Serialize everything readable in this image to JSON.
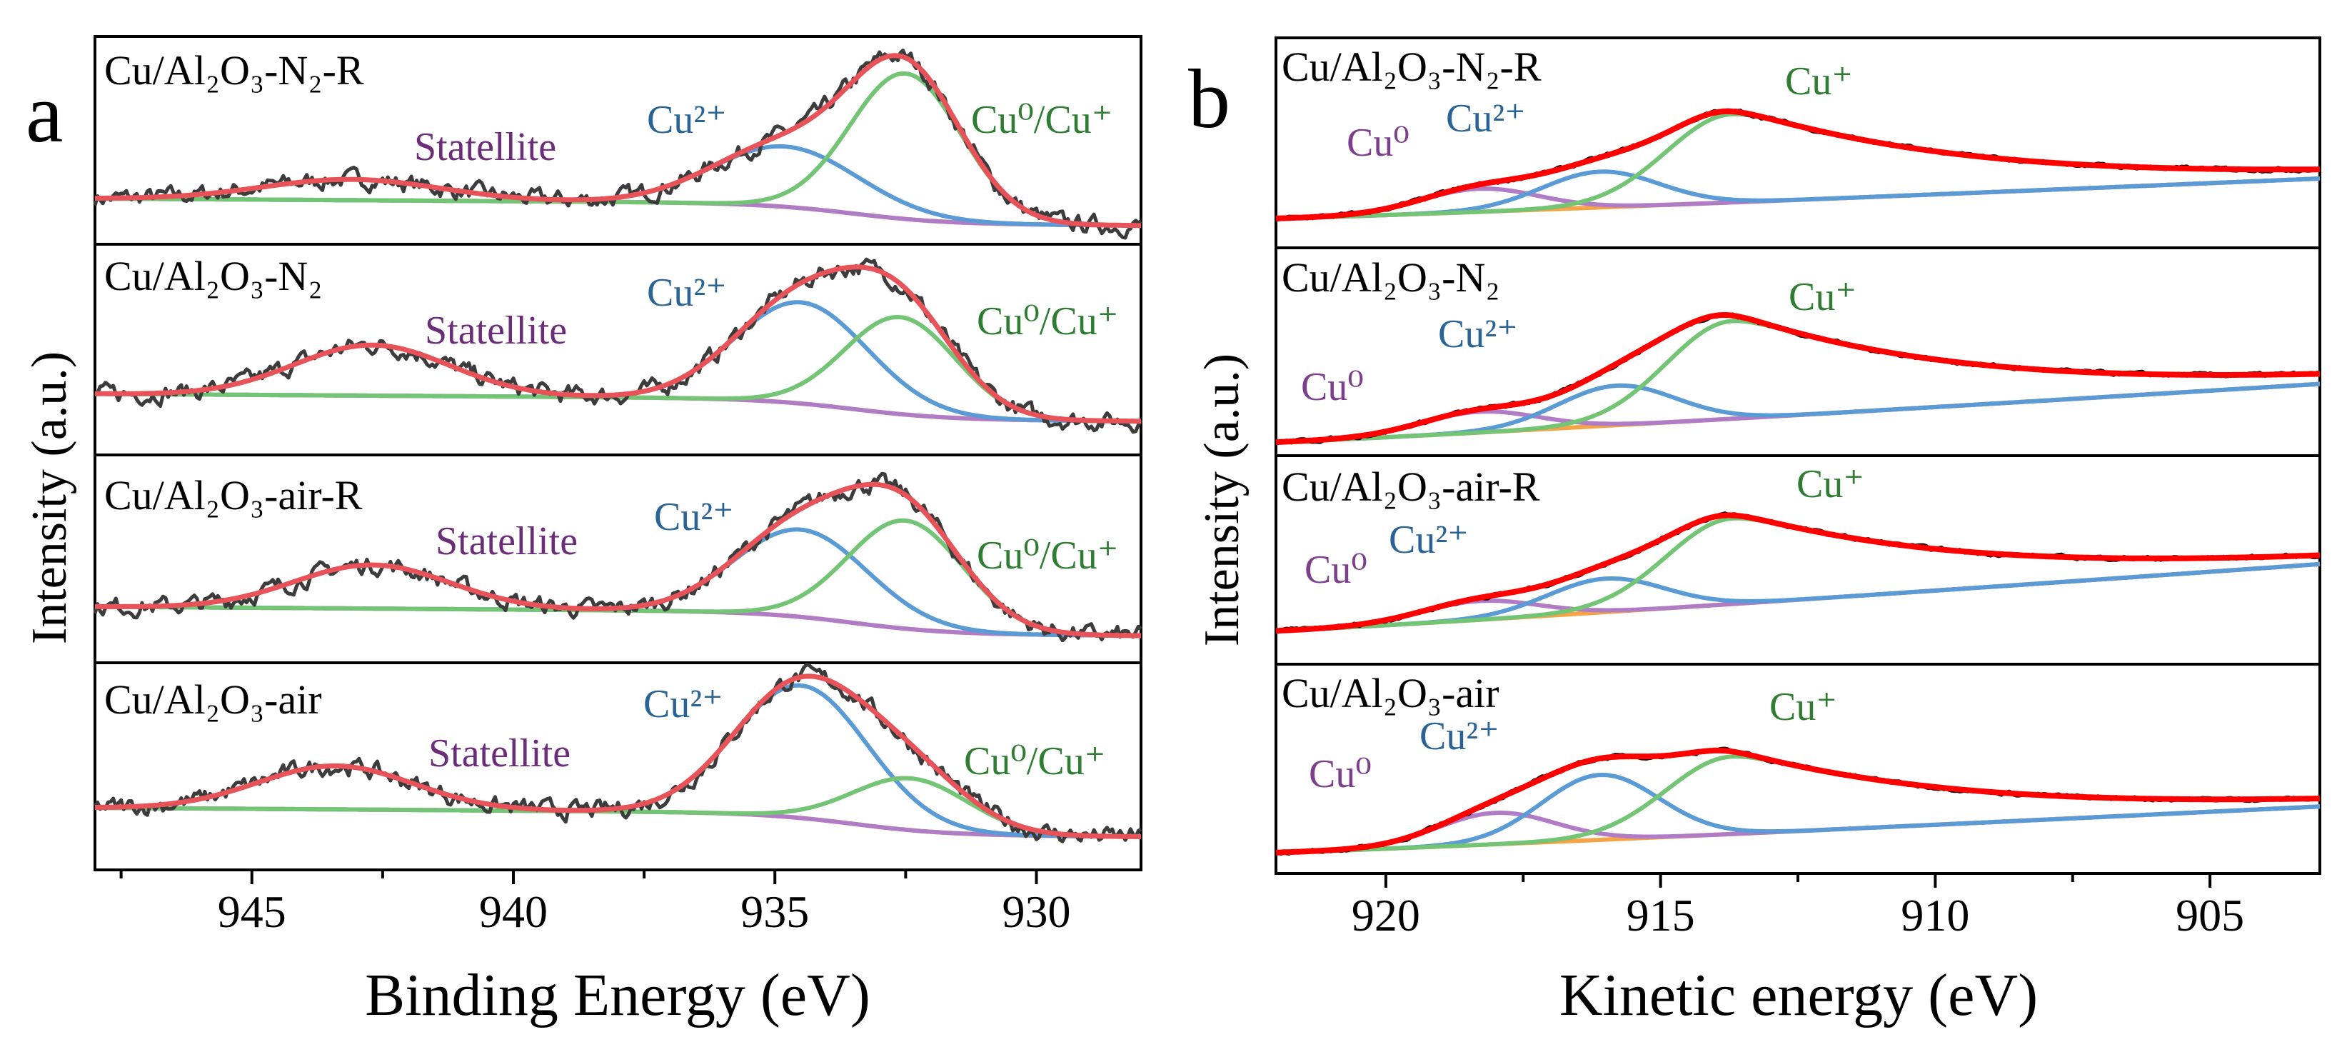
{
  "panel_letters": [
    "a",
    "b"
  ],
  "chart_data": [
    {
      "type": "line",
      "panel_letter": "a",
      "xlabel": "Binding Energy (eV)",
      "ylabel": "Intensity (a.u.)",
      "xlim": [
        948,
        928
      ],
      "x_reversed": true,
      "x_ticks": [
        945,
        940,
        935,
        930
      ],
      "x_tick_labels": [
        "945",
        "940",
        "935",
        "930"
      ],
      "x_minor_tick_step": 2.5,
      "y_ticks": false,
      "grid": false,
      "colors": {
        "raw": "#3c3c3c",
        "fit": "#e8535a",
        "background": "#f5a347"
      },
      "panels": [
        {
          "sample": "Cu/Al₂O₃-N₂-R",
          "background": {
            "start": 0.22,
            "end": 0.09
          },
          "components": [
            {
              "label": "Statellite",
              "center": 943.1,
              "height": 0.1,
              "fwhm": 4.0,
              "color": "#b07cc6"
            },
            {
              "label": "Cu²⁺",
              "center": 934.8,
              "height": 0.29,
              "fwhm": 3.3,
              "color": "#5b9bd5"
            },
            {
              "label": "Cu⁰/Cu⁺",
              "center": 932.5,
              "height": 0.7,
              "fwhm": 2.5,
              "color": "#74c476"
            }
          ]
        },
        {
          "sample": "Cu/Al₂O₃-N₂",
          "background": {
            "start": 0.29,
            "end": 0.16
          },
          "components": [
            {
              "label": "Statellite",
              "center": 942.7,
              "height": 0.24,
              "fwhm": 3.5,
              "color": "#b07cc6"
            },
            {
              "label": "Cu²⁺",
              "center": 934.5,
              "height": 0.48,
              "fwhm": 3.0,
              "color": "#5b9bd5"
            },
            {
              "label": "Cu⁰/Cu⁺",
              "center": 932.6,
              "height": 0.46,
              "fwhm": 2.5,
              "color": "#74c476"
            }
          ]
        },
        {
          "sample": "Cu/Al₂O₃-air-R",
          "background": {
            "start": 0.27,
            "end": 0.13
          },
          "components": [
            {
              "label": "Statellite",
              "center": 942.7,
              "height": 0.21,
              "fwhm": 3.5,
              "color": "#b07cc6"
            },
            {
              "label": "Cu²⁺",
              "center": 934.5,
              "height": 0.42,
              "fwhm": 3.0,
              "color": "#5b9bd5"
            },
            {
              "label": "Cu⁰/Cu⁺",
              "center": 932.5,
              "height": 0.52,
              "fwhm": 2.6,
              "color": "#74c476"
            }
          ]
        },
        {
          "sample": "Cu/Al₂O₃-air",
          "background": {
            "start": 0.3,
            "end": 0.16
          },
          "components": [
            {
              "label": "Statellite",
              "center": 943.4,
              "height": 0.21,
              "fwhm": 3.5,
              "color": "#b07cc6"
            },
            {
              "label": "Cu²⁺",
              "center": 934.5,
              "height": 0.64,
              "fwhm": 3.0,
              "color": "#5b9bd5"
            },
            {
              "label": "Cu⁰/Cu⁺",
              "center": 932.4,
              "height": 0.25,
              "fwhm": 2.6,
              "color": "#74c476"
            }
          ]
        }
      ]
    },
    {
      "type": "line",
      "panel_letter": "b",
      "xlabel": "Kinetic energy (eV)",
      "ylabel": "Intensity (a.u.)",
      "xlim": [
        922,
        903
      ],
      "x_reversed": true,
      "x_ticks": [
        920,
        915,
        910,
        905
      ],
      "x_tick_labels": [
        "920",
        "915",
        "910",
        "905"
      ],
      "x_minor_tick_step": 2.5,
      "y_ticks": false,
      "grid": false,
      "colors": {
        "raw": "#000000",
        "fit": "#ff0000",
        "background": "#f5a347"
      },
      "panels": [
        {
          "sample": "Cu/Al₂O₃-N₂-R",
          "background": {
            "start": 0.14,
            "end": 0.33
          },
          "components": [
            {
              "label": "Cu⁰",
              "center": 918.3,
              "height": 0.11,
              "fwhm": 2.5,
              "color": "#b07cc6"
            },
            {
              "label": "Cu²⁺",
              "center": 916.1,
              "height": 0.17,
              "fwhm": 2.5,
              "color": "#5b9bd5"
            },
            {
              "label": "Cu⁺",
              "center": 913.7,
              "height": 0.42,
              "fwhm": 3.3,
              "color": "#74c476"
            }
          ]
        },
        {
          "sample": "Cu/Al₂O₃-N₂",
          "background": {
            "start": 0.065,
            "end": 0.345
          },
          "components": [
            {
              "label": "Cu⁰",
              "center": 918.3,
              "height": 0.1,
              "fwhm": 2.5,
              "color": "#b07cc6"
            },
            {
              "label": "Cu²⁺",
              "center": 915.8,
              "height": 0.19,
              "fwhm": 2.5,
              "color": "#5b9bd5"
            },
            {
              "label": "Cu⁺",
              "center": 913.7,
              "height": 0.47,
              "fwhm": 3.3,
              "color": "#74c476"
            }
          ]
        },
        {
          "sample": "Cu/Al₂O₃-air-R",
          "background": {
            "start": 0.16,
            "end": 0.48
          },
          "components": [
            {
              "label": "Cu⁰",
              "center": 918.3,
              "height": 0.09,
              "fwhm": 2.5,
              "color": "#b07cc6"
            },
            {
              "label": "Cu²⁺",
              "center": 916.0,
              "height": 0.16,
              "fwhm": 2.5,
              "color": "#5b9bd5"
            },
            {
              "label": "Cu⁺",
              "center": 913.7,
              "height": 0.41,
              "fwhm": 3.3,
              "color": "#74c476"
            }
          ]
        },
        {
          "sample": "Cu/Al₂O₃-air",
          "background": {
            "start": 0.1,
            "end": 0.32
          },
          "components": [
            {
              "label": "Cu⁰",
              "center": 918.0,
              "height": 0.15,
              "fwhm": 2.5,
              "color": "#b07cc6"
            },
            {
              "label": "Cu²⁺",
              "center": 916.1,
              "height": 0.31,
              "fwhm": 2.5,
              "color": "#5b9bd5"
            },
            {
              "label": "Cu⁺",
              "center": 913.7,
              "height": 0.37,
              "fwhm": 3.3,
              "color": "#74c476"
            }
          ]
        }
      ]
    }
  ]
}
